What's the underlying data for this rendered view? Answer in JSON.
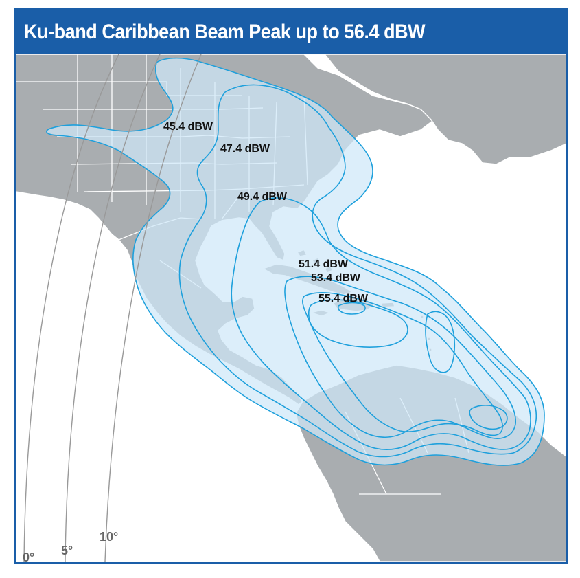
{
  "title": "Ku-band Caribbean Beam Peak up to 56.4 dBW",
  "contours": [
    {
      "label": "45.4 dBW"
    },
    {
      "label": "47.4 dBW"
    },
    {
      "label": "49.4 dBW"
    },
    {
      "label": "51.4 dBW"
    },
    {
      "label": "53.4 dBW"
    },
    {
      "label": "55.4 dBW"
    }
  ],
  "elevation_arcs": [
    {
      "label": "0°"
    },
    {
      "label": "5°"
    },
    {
      "label": "10°"
    }
  ],
  "colors": {
    "frame": "#1a5ea8",
    "land": "#a9adb0",
    "land_borders": "#ffffff",
    "ocean": "#ffffff",
    "footprint_fill": "#cfe8f8",
    "contour_line": "#1ea0dc",
    "elevation_arc": "#999999"
  }
}
